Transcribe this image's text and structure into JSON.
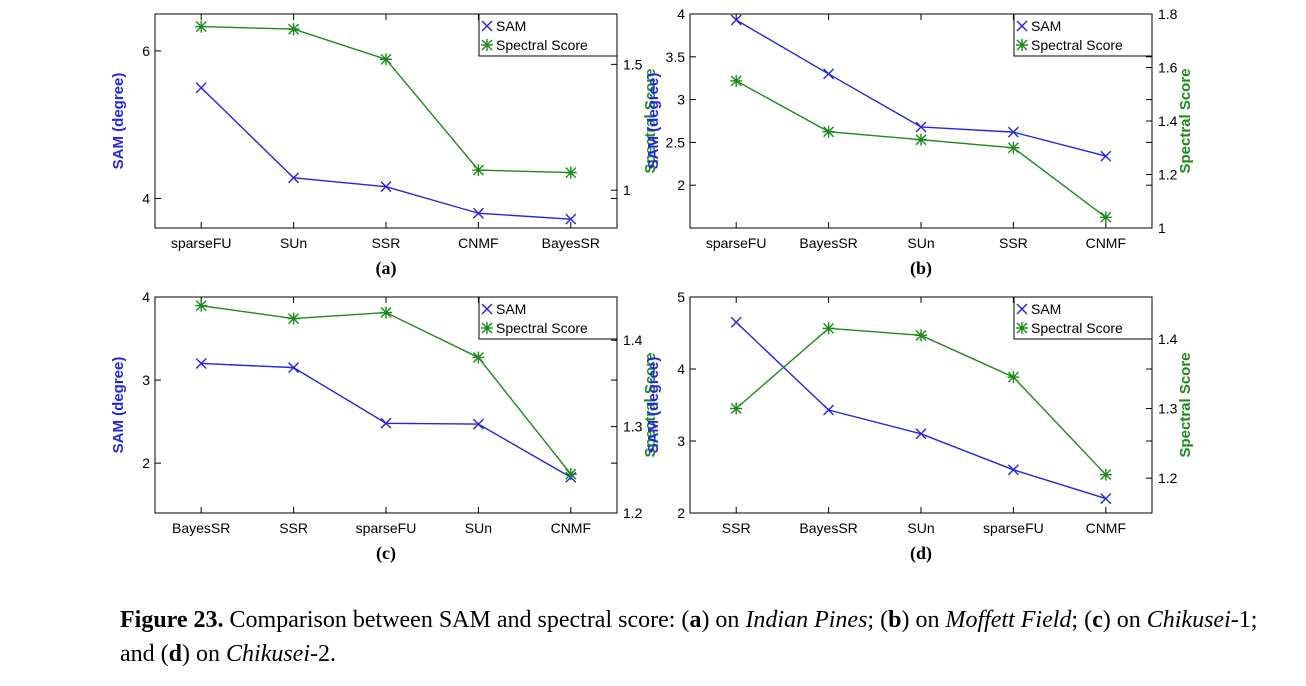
{
  "caption": {
    "label": "Figure 23.",
    "lead": "Comparison between SAM and spectral score: (",
    "a": "a",
    "a_sep": ") on ",
    "a_name": "Indian Pines",
    "a_after": "; (",
    "b": "b",
    "b_sep": ") on ",
    "b_name": "Moffett Field",
    "b_after": "; (",
    "c": "c",
    "c_sep": ") on ",
    "c_name": "Chikusei",
    "c_after": "-1; and (",
    "d": "d",
    "d_sep": ") on ",
    "d_name": "Chikusei",
    "d_after": "-2."
  },
  "colors": {
    "sam": "#2424e6",
    "spectral": "#1a8a1a",
    "axis": "#000000"
  },
  "chart_data": [
    {
      "type": "line",
      "panel_label": "(a)",
      "categories": [
        "sparseFU",
        "SUn",
        "SSR",
        "CNMF",
        "BayesSR"
      ],
      "ylabel": "SAM (degree)",
      "y2label": "Spectral Score",
      "ylim": [
        3.6,
        6.5
      ],
      "yticks": [
        4,
        6
      ],
      "y2lim": [
        0.85,
        1.7
      ],
      "y2ticks": [
        1,
        1.5
      ],
      "legend_position": "top-right",
      "series": [
        {
          "name": "SAM",
          "axis": "left",
          "marker": "x",
          "values": [
            5.5,
            4.28,
            4.16,
            3.8,
            3.72
          ]
        },
        {
          "name": "Spectral Score",
          "axis": "right",
          "marker": "*",
          "values": [
            1.65,
            1.64,
            1.52,
            1.08,
            1.07
          ]
        }
      ]
    },
    {
      "type": "line",
      "panel_label": "(b)",
      "categories": [
        "sparseFU",
        "BayesSR",
        "SUn",
        "SSR",
        "CNMF"
      ],
      "ylabel": "SAM (degree)",
      "y2label": "Spectral Score",
      "ylim": [
        1.5,
        4
      ],
      "yticks": [
        2,
        2.5,
        3,
        3.5,
        4
      ],
      "y2lim": [
        1,
        1.8
      ],
      "y2ticks": [
        1,
        1.2,
        1.4,
        1.6,
        1.8
      ],
      "legend_position": "top-right",
      "series": [
        {
          "name": "SAM",
          "axis": "left",
          "marker": "x",
          "values": [
            3.93,
            3.3,
            2.68,
            2.62,
            2.34
          ]
        },
        {
          "name": "Spectral Score",
          "axis": "right",
          "marker": "*",
          "values": [
            1.55,
            1.36,
            1.33,
            1.3,
            1.04
          ]
        }
      ]
    },
    {
      "type": "line",
      "panel_label": "(c)",
      "categories": [
        "BayesSR",
        "SSR",
        "sparseFU",
        "SUn",
        "CNMF"
      ],
      "ylabel": "SAM (degree)",
      "y2label": "Spectral Score",
      "ylim": [
        1.4,
        4
      ],
      "yticks": [
        2,
        3,
        4
      ],
      "y2lim": [
        1.2,
        1.45
      ],
      "y2ticks": [
        1.2,
        1.3,
        1.4
      ],
      "legend_position": "top-right",
      "series": [
        {
          "name": "SAM",
          "axis": "left",
          "marker": "x",
          "values": [
            3.2,
            3.15,
            2.48,
            2.47,
            1.83
          ]
        },
        {
          "name": "Spectral Score",
          "axis": "right",
          "marker": "*",
          "values": [
            1.44,
            1.425,
            1.432,
            1.38,
            1.245
          ]
        }
      ]
    },
    {
      "type": "line",
      "panel_label": "(d)",
      "categories": [
        "SSR",
        "BayesSR",
        "SUn",
        "sparseFU",
        "CNMF"
      ],
      "ylabel": "SAM (degree)",
      "y2label": "Spectral Score",
      "ylim": [
        2,
        5
      ],
      "yticks": [
        2,
        3,
        4,
        5
      ],
      "y2lim": [
        1.15,
        1.46
      ],
      "y2ticks": [
        1.2,
        1.3,
        1.4
      ],
      "legend_position": "top-right",
      "series": [
        {
          "name": "SAM",
          "axis": "left",
          "marker": "x",
          "values": [
            4.65,
            3.43,
            3.1,
            2.6,
            2.2
          ]
        },
        {
          "name": "Spectral Score",
          "axis": "right",
          "marker": "*",
          "values": [
            1.3,
            1.415,
            1.405,
            1.345,
            1.205
          ]
        }
      ]
    }
  ]
}
